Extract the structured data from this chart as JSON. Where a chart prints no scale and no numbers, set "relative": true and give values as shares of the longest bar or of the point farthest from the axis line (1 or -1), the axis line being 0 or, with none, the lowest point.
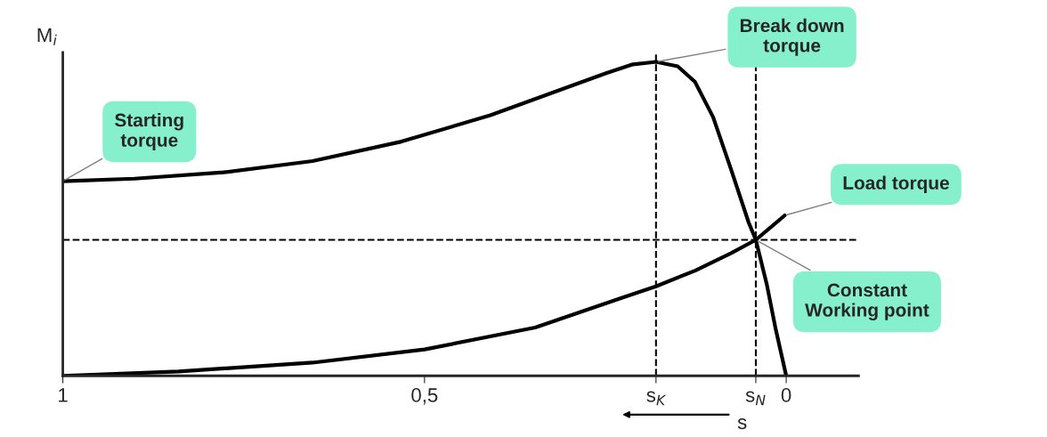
{
  "chart_data": {
    "type": "line",
    "relative": true,
    "xlabel": "s",
    "ylabel": "M$_{i}$",
    "xlim": [
      1,
      -0.1
    ],
    "xticks": [
      {
        "value": 1,
        "label": "1"
      },
      {
        "value": 0.5,
        "label": "0,5"
      },
      {
        "value": 0.18,
        "label": "s$_{K}$"
      },
      {
        "value": 0.042,
        "label": "s$_{N}$"
      },
      0
    ],
    "series": [
      {
        "color": "#000000",
        "x": [
          1,
          0.901,
          0.778,
          0.655,
          0.532,
          0.409,
          0.31,
          0.249,
          0.212,
          0.18,
          0.15,
          0.126,
          0.101,
          0.076,
          0.052,
          0.042,
          0.027,
          0.015,
          0
        ],
        "values": [
          0.62,
          0.628,
          0.648,
          0.684,
          0.746,
          0.83,
          0.913,
          0.964,
          0.992,
          1,
          0.986,
          0.936,
          0.824,
          0.656,
          0.489,
          0.433,
          0.293,
          0.154,
          0
        ]
      },
      {
        "color": "#000000",
        "x": [
          1,
          0.84,
          0.655,
          0.5,
          0.347,
          0.224,
          0.18,
          0.126,
          0.076,
          0.042,
          0.002
        ],
        "values": [
          0,
          0.014,
          0.042,
          0.084,
          0.154,
          0.251,
          0.285,
          0.335,
          0.391,
          0.433,
          0.511
        ]
      }
    ],
    "ref_lines": [
      {
        "axis": "x",
        "value": 0.18,
        "line_style": "dashed",
        "color": "#000000"
      },
      {
        "axis": "x",
        "value": 0.042,
        "line_style": "dashed",
        "color": "#000000"
      },
      {
        "axis": "y",
        "value": 0.433,
        "line_style": "dashed",
        "color": "#000000"
      }
    ],
    "annotations": [
      {
        "text": "Starting\ntorque",
        "x": 1,
        "y": 0.62
      },
      {
        "text": "Break down\ntorque",
        "x": 0.18,
        "y": 1
      },
      {
        "text": "Load torque",
        "x": 0.002,
        "y": 0.511
      },
      {
        "text": "Constant\nWorking point",
        "x": 0.042,
        "y": 0.433
      }
    ],
    "marker": "none",
    "line_style": "solid",
    "grid": false,
    "legend": false
  }
}
